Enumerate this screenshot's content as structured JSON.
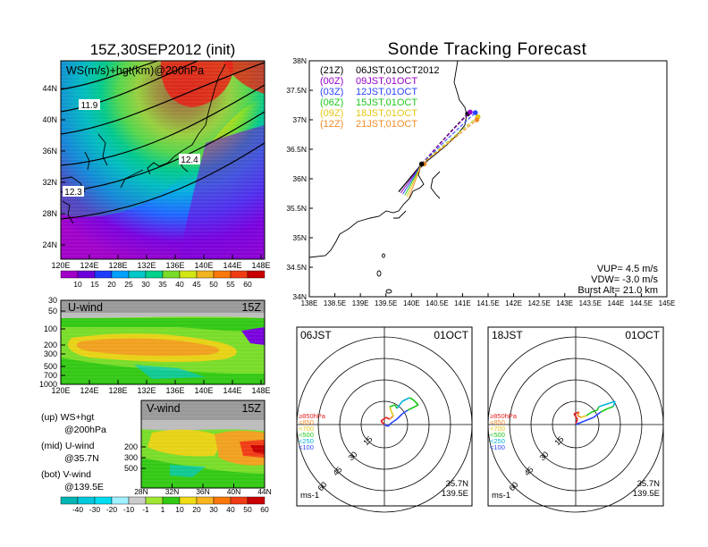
{
  "title_left": "15Z,30SEP2012 (init)",
  "title_right": "Sonde Tracking Forecast",
  "map_panel": {
    "label": "WS(m/s)+hgt(km)@200hPa",
    "x_ticks": [
      "120E",
      "124E",
      "128E",
      "132E",
      "136E",
      "140E",
      "144E",
      "148E"
    ],
    "y_ticks": [
      "24N",
      "28N",
      "32N",
      "36N",
      "40N",
      "44N"
    ],
    "height_labels": [
      "11.9",
      "12.4",
      "12.3"
    ],
    "colorbar": {
      "levels": [
        "10",
        "15",
        "20",
        "25",
        "30",
        "35",
        "40",
        "45",
        "50",
        "55",
        "60"
      ],
      "colors": [
        "#a000c8",
        "#6e00dc",
        "#1e3cff",
        "#00a0ff",
        "#00c8c8",
        "#00d28c",
        "#78dc28",
        "#d2e614",
        "#f0b41e",
        "#fa780a",
        "#f03c14",
        "#c80000"
      ]
    }
  },
  "uwind_panel": {
    "label": "U-wind",
    "time": "15Z",
    "y_ticks": [
      "30",
      "50",
      "100",
      "200",
      "300",
      "500",
      "700",
      "1000"
    ],
    "x_ticks": [
      "120E",
      "124E",
      "128E",
      "132E",
      "136E",
      "140E",
      "144E",
      "148E"
    ]
  },
  "vwind_panel": {
    "label": "V-wind",
    "time": "15Z",
    "y_ticks": [
      "200",
      "300",
      "500"
    ],
    "x_ticks": [
      "28N",
      "32N",
      "36N",
      "40N",
      "44N"
    ]
  },
  "legend_notes": [
    {
      "a": "(up) WS+hgt",
      "b": "@200hPa"
    },
    {
      "a": "(mid) U-wind",
      "b": "@35.7N"
    },
    {
      "a": "(bot) V-wind",
      "b": "@139.5E"
    }
  ],
  "wind_colorbar": {
    "levels": [
      "-40",
      "-30",
      "-20",
      "-10",
      "-1",
      "1",
      "10",
      "20",
      "30",
      "40",
      "50",
      "60"
    ],
    "colors": [
      "#00b4b4",
      "#00c8dc",
      "#00dcf0",
      "#a0f0ff",
      "#cccccc",
      "#a0e632",
      "#32c814",
      "#f0dc14",
      "#fab41e",
      "#fa780a",
      "#f03c14",
      "#c80000"
    ]
  },
  "chart_data": {
    "type": "line",
    "title": "Sonde Tracking Forecast",
    "xlim": [
      138,
      145
    ],
    "ylim": [
      34,
      38
    ],
    "x_ticks": [
      "138E",
      "138.5E",
      "139E",
      "139.5E",
      "140E",
      "140.5E",
      "141E",
      "141.5E",
      "142E",
      "142.5E",
      "143E",
      "143.5E",
      "144E",
      "144.5E",
      "145E"
    ],
    "y_ticks": [
      "34N",
      "34.5N",
      "35N",
      "35.5N",
      "36N",
      "36.5N",
      "37N",
      "37.5N",
      "38N"
    ],
    "launch": {
      "lon": 140.2,
      "lat": 36.25
    },
    "series": [
      {
        "name": "(21Z)",
        "label": "06JST,01OCT2012",
        "color": "#000000",
        "end": [
          141.1,
          37.1
        ]
      },
      {
        "name": "(00Z)",
        "label": "09JST,01OCT",
        "color": "#9600c8",
        "end": [
          141.15,
          37.13
        ]
      },
      {
        "name": "(03Z)",
        "label": "12JST,01OCT",
        "color": "#2846ff",
        "end": [
          141.25,
          37.12
        ]
      },
      {
        "name": "(06Z)",
        "label": "15JST,01OCT",
        "color": "#1ec81e",
        "end": [
          141.3,
          37.05
        ]
      },
      {
        "name": "(09Z)",
        "label": "18JST,01OCT",
        "color": "#e6c814",
        "end": [
          141.3,
          37.05
        ]
      },
      {
        "name": "(12Z)",
        "label": "21JST,01OCT",
        "color": "#f08c28",
        "end": [
          141.28,
          37.0
        ]
      }
    ],
    "info": [
      "VUP= 4.5 m/s",
      "VDW= -3.0 m/s",
      "Burst Alt= 21.0 km"
    ]
  },
  "hodographs": [
    {
      "time": "06JST",
      "date": "01OCT",
      "lat": "35.7N",
      "lon": "139.5E",
      "unit": "ms-1"
    },
    {
      "time": "18JST",
      "date": "01OCT",
      "lat": "35.7N",
      "lon": "139.5E",
      "unit": "ms-1"
    }
  ],
  "hodo_ring_labels": [
    "15",
    "30",
    "45",
    "60"
  ],
  "hodo_levels": [
    {
      "label": "≥850hPa",
      "color": "#e61e1e"
    },
    {
      "label": "<850",
      "color": "#f08c28"
    },
    {
      "label": "<700",
      "color": "#e6c814"
    },
    {
      "label": "<500",
      "color": "#1ec81e"
    },
    {
      "label": "<250",
      "color": "#00b4dc"
    },
    {
      "label": "<100",
      "color": "#2846ff"
    }
  ]
}
